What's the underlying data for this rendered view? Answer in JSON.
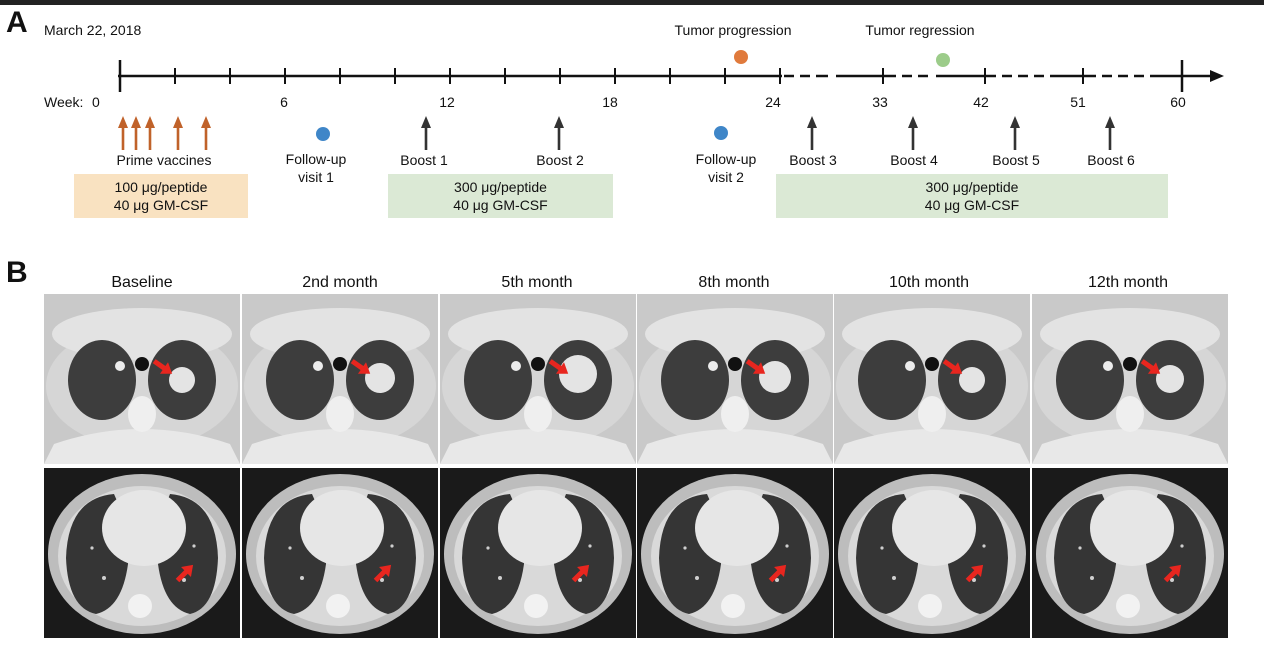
{
  "panels": {
    "a": "A",
    "b": "B"
  },
  "timeline": {
    "date": "March 22, 2018",
    "week_prefix": "Week:",
    "week_labels": [
      "0",
      "6",
      "12",
      "18",
      "24",
      "33",
      "42",
      "51",
      "60"
    ],
    "events": {
      "progression": "Tumor progression",
      "regression": "Tumor regression",
      "prime": "Prime vaccines",
      "followup1": [
        "Follow-up",
        "visit 1"
      ],
      "followup2": [
        "Follow-up",
        "visit 2"
      ],
      "boosts": [
        "Boost 1",
        "Boost 2",
        "Boost 3",
        "Boost 4",
        "Boost 5",
        "Boost 6"
      ]
    },
    "doses": [
      [
        "100 μg/peptide",
        "40 μg GM-CSF"
      ],
      [
        "300 μg/peptide",
        "40 μg GM-CSF"
      ],
      [
        "300 μg/peptide",
        "40 μg GM-CSF"
      ]
    ],
    "colors": {
      "prime_arrow": "#c0622a",
      "boost_arrow": "#333333",
      "followup_dot": "#3f86c8",
      "progression_dot": "#e07a3c",
      "regression_dot": "#9ccc8a",
      "orange_box": "#f9e2c1",
      "green_box": "#dbe9d5"
    }
  },
  "ct": {
    "months": [
      "Baseline",
      "2nd month",
      "5th month",
      "8th month",
      "10th month",
      "12th month"
    ],
    "arrow_color": "#e8261f"
  }
}
